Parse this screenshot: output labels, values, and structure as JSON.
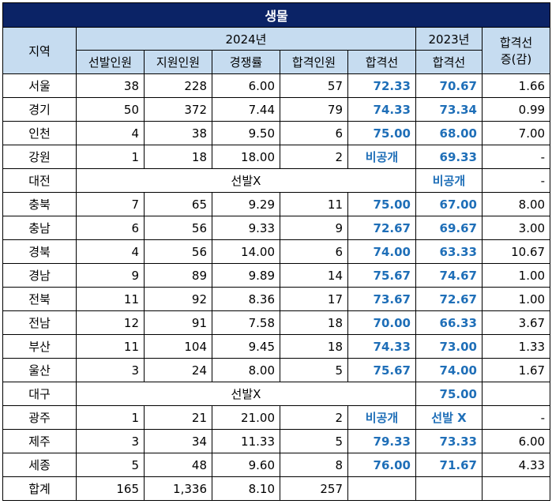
{
  "title": "생물",
  "headers": {
    "region": "지역",
    "year2024": "2024년",
    "year2023": "2023년",
    "change_line1": "합격선",
    "change_line2": "증(감)",
    "sub": [
      "선발인원",
      "지원인원",
      "경쟁률",
      "합격인원",
      "합격선"
    ],
    "sub2023": "합격선"
  },
  "rows": [
    {
      "region": "서울",
      "selected": "38",
      "applied": "228",
      "ratio": "6.00",
      "passed": "57",
      "cut2024": "72.33",
      "cut2023": "70.67",
      "change": "1.66"
    },
    {
      "region": "경기",
      "selected": "50",
      "applied": "372",
      "ratio": "7.44",
      "passed": "79",
      "cut2024": "74.33",
      "cut2023": "73.34",
      "change": "0.99"
    },
    {
      "region": "인천",
      "selected": "4",
      "applied": "38",
      "ratio": "9.50",
      "passed": "6",
      "cut2024": "75.00",
      "cut2023": "68.00",
      "change": "7.00"
    },
    {
      "region": "강원",
      "selected": "1",
      "applied": "18",
      "ratio": "18.00",
      "passed": "2",
      "cut2024": "비공개",
      "cut2023": "69.33",
      "change": "-"
    },
    {
      "region": "대전",
      "merged": "선발X",
      "cut2023": "비공개",
      "change": "-"
    },
    {
      "region": "충북",
      "selected": "7",
      "applied": "65",
      "ratio": "9.29",
      "passed": "11",
      "cut2024": "75.00",
      "cut2023": "67.00",
      "change": "8.00"
    },
    {
      "region": "충남",
      "selected": "6",
      "applied": "56",
      "ratio": "9.33",
      "passed": "9",
      "cut2024": "72.67",
      "cut2023": "69.67",
      "change": "3.00"
    },
    {
      "region": "경북",
      "selected": "4",
      "applied": "56",
      "ratio": "14.00",
      "passed": "6",
      "cut2024": "74.00",
      "cut2023": "63.33",
      "change": "10.67"
    },
    {
      "region": "경남",
      "selected": "9",
      "applied": "89",
      "ratio": "9.89",
      "passed": "14",
      "cut2024": "75.67",
      "cut2023": "74.67",
      "change": "1.00"
    },
    {
      "region": "전북",
      "selected": "11",
      "applied": "92",
      "ratio": "8.36",
      "passed": "17",
      "cut2024": "73.67",
      "cut2023": "72.67",
      "change": "1.00"
    },
    {
      "region": "전남",
      "selected": "12",
      "applied": "91",
      "ratio": "7.58",
      "passed": "18",
      "cut2024": "70.00",
      "cut2023": "66.33",
      "change": "3.67"
    },
    {
      "region": "부산",
      "selected": "11",
      "applied": "104",
      "ratio": "9.45",
      "passed": "18",
      "cut2024": "74.33",
      "cut2023": "73.00",
      "change": "1.33"
    },
    {
      "region": "울산",
      "selected": "3",
      "applied": "24",
      "ratio": "8.00",
      "passed": "5",
      "cut2024": "75.67",
      "cut2023": "74.00",
      "change": "1.67"
    },
    {
      "region": "대구",
      "merged": "선발X",
      "cut2023": "75.00",
      "change": ""
    },
    {
      "region": "광주",
      "selected": "1",
      "applied": "21",
      "ratio": "21.00",
      "passed": "2",
      "cut2024": "비공개",
      "cut2023": "선발 X",
      "change": "-"
    },
    {
      "region": "제주",
      "selected": "3",
      "applied": "34",
      "ratio": "11.33",
      "passed": "5",
      "cut2024": "79.33",
      "cut2023": "73.33",
      "change": "6.00"
    },
    {
      "region": "세종",
      "selected": "5",
      "applied": "48",
      "ratio": "9.60",
      "passed": "8",
      "cut2024": "76.00",
      "cut2023": "71.67",
      "change": "4.33"
    }
  ],
  "total": {
    "region": "합계",
    "selected": "165",
    "applied": "1,336",
    "ratio": "8.10",
    "passed": "257",
    "cut2024": "",
    "cut2023": "",
    "change": ""
  }
}
